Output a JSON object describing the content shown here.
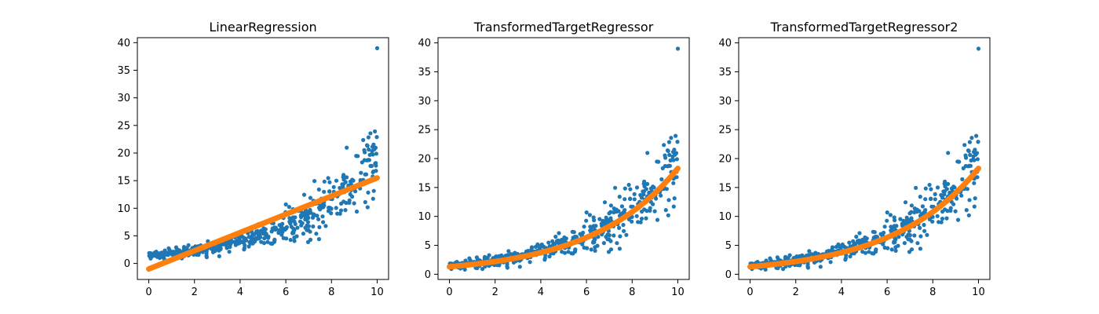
{
  "colors": {
    "scatter": "#1f77b4",
    "fit": "#ff7f0e",
    "background": "#ffffff",
    "axes": "#000000"
  },
  "chart_data": [
    {
      "type": "scatter",
      "title": "LinearRegression",
      "xlabel": "",
      "ylabel": "",
      "xlim": [
        -0.5,
        10.5
      ],
      "ylim": [
        -2.9,
        40.9
      ],
      "xticks": [
        0,
        2,
        4,
        6,
        8,
        10
      ],
      "yticks": [
        0,
        5,
        10,
        15,
        20,
        25,
        30,
        35,
        40
      ],
      "grid": false,
      "scatter_model": {
        "n_points": 500,
        "y_approx": "exp(0.3x)+noise",
        "x_range": [
          0,
          10
        ],
        "max_point": [
          10,
          39
        ]
      },
      "fit_line": {
        "shape": "linear",
        "x": [
          0,
          10
        ],
        "y": [
          -1.0,
          15.5
        ]
      }
    },
    {
      "type": "scatter",
      "title": "TransformedTargetRegressor",
      "xlabel": "",
      "ylabel": "",
      "xlim": [
        -0.5,
        10.5
      ],
      "ylim": [
        -0.9,
        40.9
      ],
      "xticks": [
        0,
        2,
        4,
        6,
        8,
        10
      ],
      "yticks": [
        0,
        5,
        10,
        15,
        20,
        25,
        30,
        35,
        40
      ],
      "grid": false,
      "scatter_model": {
        "n_points": 500,
        "y_approx": "exp(0.3x)+noise",
        "x_range": [
          0,
          10
        ],
        "max_point": [
          10,
          39
        ]
      },
      "fit_line": {
        "shape": "exponential",
        "x": [
          0,
          2,
          4,
          6,
          8,
          10
        ],
        "y": [
          1.3,
          2.4,
          4.0,
          6.4,
          10.7,
          18.3
        ]
      }
    },
    {
      "type": "scatter",
      "title": "TransformedTargetRegressor2",
      "xlabel": "",
      "ylabel": "",
      "xlim": [
        -0.5,
        10.5
      ],
      "ylim": [
        -0.9,
        40.9
      ],
      "xticks": [
        0,
        2,
        4,
        6,
        8,
        10
      ],
      "yticks": [
        0,
        5,
        10,
        15,
        20,
        25,
        30,
        35,
        40
      ],
      "grid": false,
      "scatter_model": {
        "n_points": 500,
        "y_approx": "exp(0.3x)+noise",
        "x_range": [
          0,
          10
        ],
        "max_point": [
          10,
          39
        ]
      },
      "fit_line": {
        "shape": "exponential",
        "x": [
          0,
          2,
          4,
          6,
          8,
          10
        ],
        "y": [
          1.3,
          2.4,
          4.0,
          6.4,
          10.7,
          18.3
        ]
      }
    }
  ]
}
